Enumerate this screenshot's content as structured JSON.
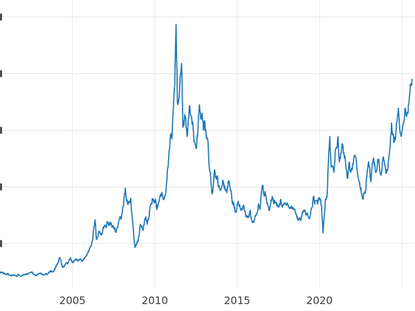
{
  "figure": {
    "background": "#ffffff"
  },
  "chart_data": {
    "type": "line",
    "title": "",
    "xlabel": "",
    "ylabel": "",
    "legend": "none",
    "grid": "on",
    "grid_color": "#e5e5e5",
    "tick_label_color": "#3b3b3b",
    "xlim": [
      2000.6,
      2025.8
    ],
    "ylim": [
      2,
      53
    ],
    "x_tick_values": [
      2005,
      2010,
      2015,
      2020
    ],
    "x_tick_labels": [
      "2005",
      "2010",
      "2015",
      "2020"
    ],
    "x_grid_values": [
      2005,
      2010,
      2015,
      2020,
      2025
    ],
    "y_grid_values": [
      10,
      20,
      30,
      40,
      50
    ],
    "series": [
      {
        "name": "price",
        "color": "#1f77b4",
        "start_x": 2000.625,
        "x_step_years": 0.0833333,
        "values": [
          4.9,
          4.9,
          4.8,
          4.7,
          4.6,
          4.7,
          4.5,
          4.4,
          4.4,
          4.4,
          4.4,
          4.3,
          4.2,
          4.6,
          4.4,
          4.2,
          4.4,
          4.5,
          4.5,
          4.6,
          4.6,
          4.8,
          4.9,
          5.0,
          4.6,
          4.5,
          4.4,
          4.5,
          4.7,
          4.8,
          4.6,
          4.5,
          4.5,
          4.7,
          4.5,
          4.8,
          5.0,
          5.2,
          5.0,
          5.2,
          5.7,
          6.3,
          6.6,
          7.5,
          7.1,
          5.9,
          5.9,
          6.3,
          6.6,
          6.4,
          7.1,
          7.5,
          6.8,
          6.6,
          7.0,
          7.3,
          7.1,
          7.0,
          7.3,
          7.0,
          7.0,
          7.3,
          7.7,
          7.9,
          8.6,
          9.1,
          9.5,
          10.4,
          12.6,
          14.2,
          10.7,
          11.2,
          12.2,
          11.6,
          11.6,
          12.9,
          13.3,
          12.8,
          13.9,
          13.2,
          13.8,
          13.2,
          13.2,
          12.8,
          12.0,
          12.8,
          13.7,
          14.7,
          14.3,
          16.2,
          17.7,
          19.8,
          17.5,
          16.9,
          17.2,
          18.0,
          14.6,
          12.0,
          9.3,
          9.9,
          10.3,
          11.3,
          13.4,
          13.1,
          12.3,
          14.0,
          14.7,
          13.4,
          14.3,
          16.5,
          17.0,
          17.8,
          17.2,
          17.8,
          16.0,
          17.1,
          18.2,
          18.4,
          18.6,
          18.0,
          18.4,
          20.6,
          23.4,
          26.5,
          29.3,
          28.5,
          33.8,
          37.9,
          48.7,
          34.8,
          35.5,
          39.6,
          41.8,
          30.5,
          31.8,
          32.2,
          28.9,
          32.0,
          34.2,
          32.5,
          31.5,
          28.0,
          27.5,
          27.3,
          30.5,
          34.5,
          32.0,
          33.0,
          30.0,
          31.5,
          28.7,
          28.5,
          24.0,
          22.5,
          19.0,
          19.7,
          23.0,
          21.8,
          22.0,
          20.0,
          19.5,
          20.0,
          21.2,
          19.8,
          19.6,
          19.0,
          20.9,
          20.5,
          19.4,
          17.1,
          17.2,
          15.6,
          15.7,
          17.2,
          16.6,
          16.2,
          16.2,
          16.7,
          15.7,
          14.7,
          14.6,
          14.6,
          15.9,
          14.1,
          13.8,
          14.2,
          15.0,
          15.4,
          17.0,
          16.0,
          18.6,
          20.3,
          18.7,
          19.2,
          17.6,
          16.6,
          15.9,
          17.1,
          18.3,
          17.3,
          17.2,
          17.3,
          16.6,
          16.5,
          17.6,
          16.9,
          16.7,
          17.0,
          16.9,
          17.2,
          16.5,
          16.3,
          16.6,
          16.4,
          16.1,
          15.4,
          14.6,
          14.3,
          14.6,
          14.2,
          15.5,
          15.9,
          15.8,
          15.1,
          15.0,
          14.4,
          15.3,
          16.3,
          18.3,
          17.0,
          17.6,
          17.0,
          17.9,
          17.9,
          16.7,
          11.9,
          15.2,
          17.9,
          18.2,
          24.4,
          28.9,
          23.5,
          23.7,
          22.6,
          26.4,
          27.0,
          28.9,
          24.4,
          26.0,
          27.6,
          25.9,
          25.5,
          23.0,
          21.5,
          24.3,
          22.8,
          23.3,
          24.0,
          25.5,
          25.2,
          22.8,
          21.2,
          20.2,
          19.0,
          17.9,
          18.9,
          19.2,
          21.9,
          24.0,
          23.6,
          20.9,
          24.1,
          25.1,
          23.3,
          22.8,
          24.9,
          24.2,
          22.2,
          22.9,
          25.3,
          23.8,
          22.4,
          22.9,
          25.1,
          27.2,
          31.3,
          29.1,
          27.9,
          28.9,
          31.5,
          33.9,
          30.2,
          28.9,
          30.3,
          31.7,
          33.9,
          32.4,
          33.0,
          36.0,
          38.2,
          39.0
        ]
      }
    ]
  }
}
